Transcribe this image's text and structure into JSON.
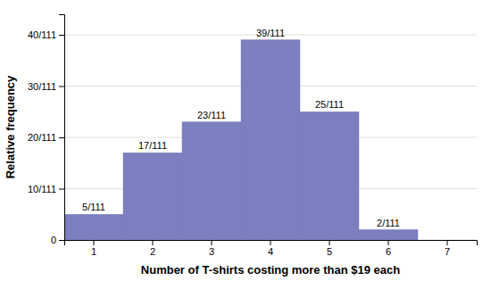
{
  "chart_data": {
    "type": "bar",
    "categories": [
      "1",
      "2",
      "3",
      "4",
      "5",
      "6",
      "7"
    ],
    "values": [
      5,
      17,
      23,
      39,
      25,
      2,
      0
    ],
    "value_labels": [
      "5/111",
      "17/111",
      "23/111",
      "39/111",
      "25/111",
      "2/111",
      null
    ],
    "data_labels": true,
    "color": "#7b7fbf",
    "xlabel": "Number of T-shirts costing more than $19 each",
    "ylabel": "Relative frequency",
    "ylim": [
      0,
      44
    ],
    "yticks": [
      0,
      {
        "value": 10,
        "label": "10/111"
      },
      {
        "value": 20,
        "label": "20/111"
      },
      {
        "value": 30,
        "label": "30/111"
      },
      {
        "value": 40,
        "label": "40/111"
      }
    ],
    "grid": true
  }
}
